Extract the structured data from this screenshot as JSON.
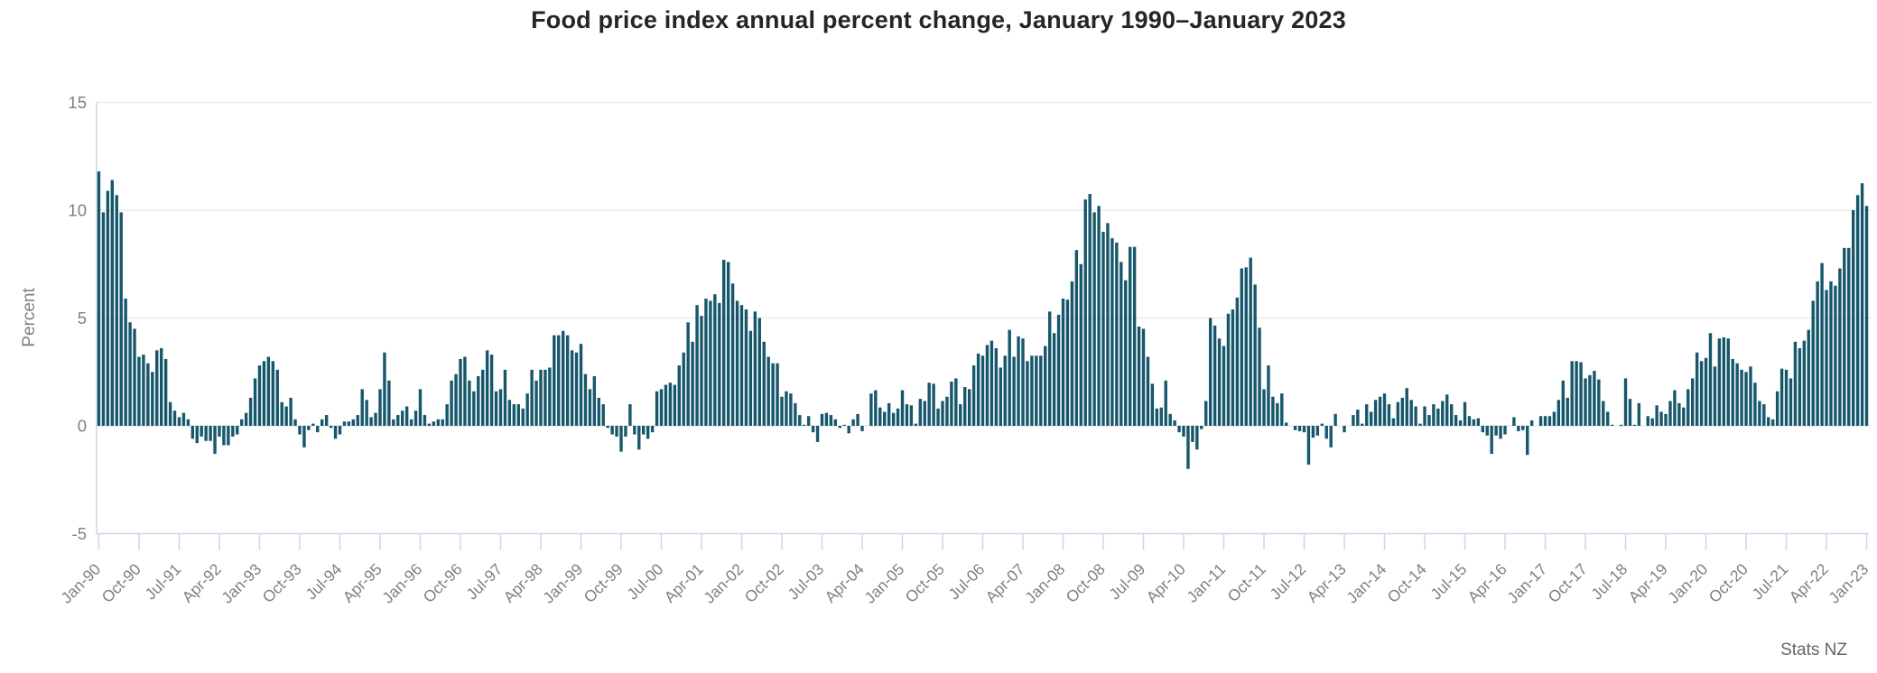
{
  "chart": {
    "title": "Food price index annual percent change, January 1990–January 2023",
    "source": "Stats NZ"
  },
  "chart_data": {
    "type": "bar",
    "title": "Food price index annual percent change, January 1990–January 2023",
    "series_name": "Food price index annual percent change",
    "xlabel": "",
    "ylabel": "Percent",
    "ylim": [
      -5,
      15
    ],
    "yticks": [
      15,
      10,
      5,
      0,
      -5
    ],
    "grid": true,
    "legend": "none",
    "bar_color": "#16576c",
    "frequency": "monthly",
    "x_start": "Jan-1990",
    "x_end": "Jan-2023",
    "x_tick_every_months": 9,
    "x_tick_labels": [
      "Jan-90",
      "Oct-90",
      "Jul-91",
      "Apr-92",
      "Jan-93",
      "Oct-93",
      "Jul-94",
      "Apr-95",
      "Jan-96",
      "Oct-96",
      "Jul-97",
      "Apr-98",
      "Jan-99",
      "Oct-99",
      "Jul-00",
      "Apr-01",
      "Jan-02",
      "Oct-02",
      "Jul-03",
      "Apr-04",
      "Jan-05",
      "Oct-05",
      "Jul-06",
      "Apr-07",
      "Jan-08",
      "Oct-08",
      "Jul-09",
      "Apr-10",
      "Jan-11",
      "Oct-11",
      "Jul-12",
      "Apr-13",
      "Jan-14",
      "Oct-14",
      "Jul-15",
      "Apr-16",
      "Jan-17",
      "Oct-17",
      "Jul-18",
      "Apr-19",
      "Jan-20",
      "Oct-20",
      "Jul-21",
      "Apr-22",
      "Jan-23"
    ],
    "values": [
      11.8,
      9.9,
      10.9,
      11.4,
      10.7,
      9.9,
      5.9,
      4.8,
      4.5,
      3.2,
      3.3,
      2.9,
      2.5,
      3.5,
      3.6,
      3.1,
      1.1,
      0.7,
      0.4,
      0.6,
      0.3,
      -0.6,
      -0.8,
      -0.5,
      -0.7,
      -0.7,
      -1.3,
      -0.5,
      -0.9,
      -0.9,
      -0.5,
      -0.4,
      0.3,
      0.6,
      1.3,
      2.2,
      2.8,
      3.0,
      3.2,
      3.0,
      2.6,
      1.1,
      0.9,
      1.3,
      0.3,
      -0.4,
      -1.0,
      -0.2,
      0.1,
      -0.3,
      0.3,
      0.5,
      -0.1,
      -0.6,
      -0.4,
      0.2,
      0.2,
      0.3,
      0.5,
      1.7,
      1.2,
      0.4,
      0.6,
      1.7,
      3.4,
      2.1,
      0.3,
      0.5,
      0.7,
      0.9,
      0.3,
      0.7,
      1.7,
      0.5,
      0.1,
      0.2,
      0.3,
      0.3,
      1.0,
      2.1,
      2.4,
      3.1,
      3.2,
      2.1,
      1.6,
      2.3,
      2.6,
      3.5,
      3.3,
      1.6,
      1.7,
      2.6,
      1.2,
      1.0,
      1.0,
      0.8,
      1.5,
      2.6,
      2.1,
      2.6,
      2.6,
      2.7,
      4.2,
      4.2,
      4.4,
      4.2,
      3.5,
      3.4,
      3.8,
      2.4,
      1.7,
      2.3,
      1.3,
      1.0,
      -0.1,
      -0.4,
      -0.5,
      -1.2,
      -0.5,
      1.0,
      -0.4,
      -1.1,
      -0.4,
      -0.6,
      -0.3,
      1.6,
      1.7,
      1.9,
      2.0,
      1.9,
      2.8,
      3.4,
      4.8,
      3.9,
      5.6,
      5.1,
      5.9,
      5.8,
      6.1,
      5.7,
      7.7,
      7.6,
      6.6,
      5.8,
      5.6,
      5.4,
      4.4,
      5.3,
      5.0,
      3.9,
      3.2,
      2.9,
      2.9,
      1.35,
      1.6,
      1.5,
      1.05,
      0.5,
      0.05,
      0.45,
      -0.3,
      -0.75,
      0.55,
      0.6,
      0.5,
      0.3,
      -0.1,
      0.05,
      -0.35,
      0.3,
      0.55,
      -0.25,
      0.0,
      1.5,
      1.65,
      0.85,
      0.65,
      1.05,
      0.6,
      0.8,
      1.65,
      1.0,
      0.95,
      0.1,
      1.25,
      1.15,
      2.0,
      1.95,
      0.8,
      1.15,
      1.35,
      2.05,
      2.2,
      1.0,
      1.8,
      1.7,
      2.8,
      3.35,
      3.25,
      3.75,
      3.95,
      3.6,
      2.7,
      3.25,
      4.45,
      3.2,
      4.15,
      4.05,
      3.0,
      3.25,
      3.25,
      3.25,
      3.7,
      5.3,
      4.3,
      5.15,
      5.9,
      5.85,
      6.7,
      8.15,
      7.5,
      10.5,
      10.75,
      9.9,
      10.2,
      9.0,
      9.4,
      8.7,
      8.5,
      7.6,
      6.75,
      8.3,
      8.3,
      4.6,
      4.5,
      3.2,
      1.95,
      0.8,
      0.85,
      2.1,
      0.55,
      0.25,
      -0.3,
      -0.5,
      -2.0,
      -0.75,
      -1.1,
      -0.15,
      1.15,
      5.0,
      4.65,
      4.05,
      3.7,
      5.2,
      5.4,
      5.95,
      7.3,
      7.35,
      7.8,
      6.55,
      4.55,
      1.7,
      2.8,
      1.35,
      1.05,
      1.5,
      0.15,
      0.0,
      -0.2,
      -0.25,
      -0.3,
      -1.8,
      -0.55,
      -0.45,
      0.1,
      -0.6,
      -1.0,
      0.55,
      0.0,
      -0.3,
      0.0,
      0.5,
      0.75,
      0.1,
      1.0,
      0.65,
      1.2,
      1.35,
      1.5,
      1.0,
      0.35,
      1.1,
      1.3,
      1.75,
      1.2,
      0.9,
      0.1,
      0.9,
      0.5,
      1.0,
      0.8,
      1.15,
      1.45,
      1.0,
      0.5,
      0.25,
      1.1,
      0.45,
      0.3,
      0.35,
      -0.3,
      -0.45,
      -1.3,
      -0.45,
      -0.6,
      -0.4,
      0.0,
      0.4,
      -0.25,
      -0.2,
      -1.35,
      0.25,
      0.0,
      0.45,
      0.45,
      0.45,
      0.65,
      1.2,
      2.1,
      1.3,
      3.0,
      3.0,
      2.95,
      2.2,
      2.35,
      2.55,
      2.15,
      1.15,
      0.65,
      0.05,
      0.0,
      0.05,
      2.2,
      1.25,
      0.05,
      1.05,
      0.0,
      0.45,
      0.35,
      0.95,
      0.65,
      0.55,
      1.15,
      1.65,
      1.05,
      0.85,
      1.7,
      2.2,
      3.4,
      3.0,
      3.15,
      4.3,
      2.75,
      4.05,
      4.1,
      4.05,
      3.1,
      2.9,
      2.6,
      2.5,
      2.75,
      2.0,
      1.15,
      1.0,
      0.4,
      0.3,
      1.6,
      2.65,
      2.6,
      2.2,
      3.9,
      3.6,
      3.95,
      4.45,
      5.8,
      6.7,
      7.55,
      6.3,
      6.7,
      6.5,
      7.3,
      8.25,
      8.25,
      10.0,
      10.7,
      11.25,
      10.2
    ],
    "colors": {
      "bar": "#16576c",
      "axis_line": "#ccd5e9",
      "gridline": "#e9eaec",
      "tick_text": "#7c8186",
      "title_text": "#232527",
      "source_text": "#63676c"
    }
  }
}
